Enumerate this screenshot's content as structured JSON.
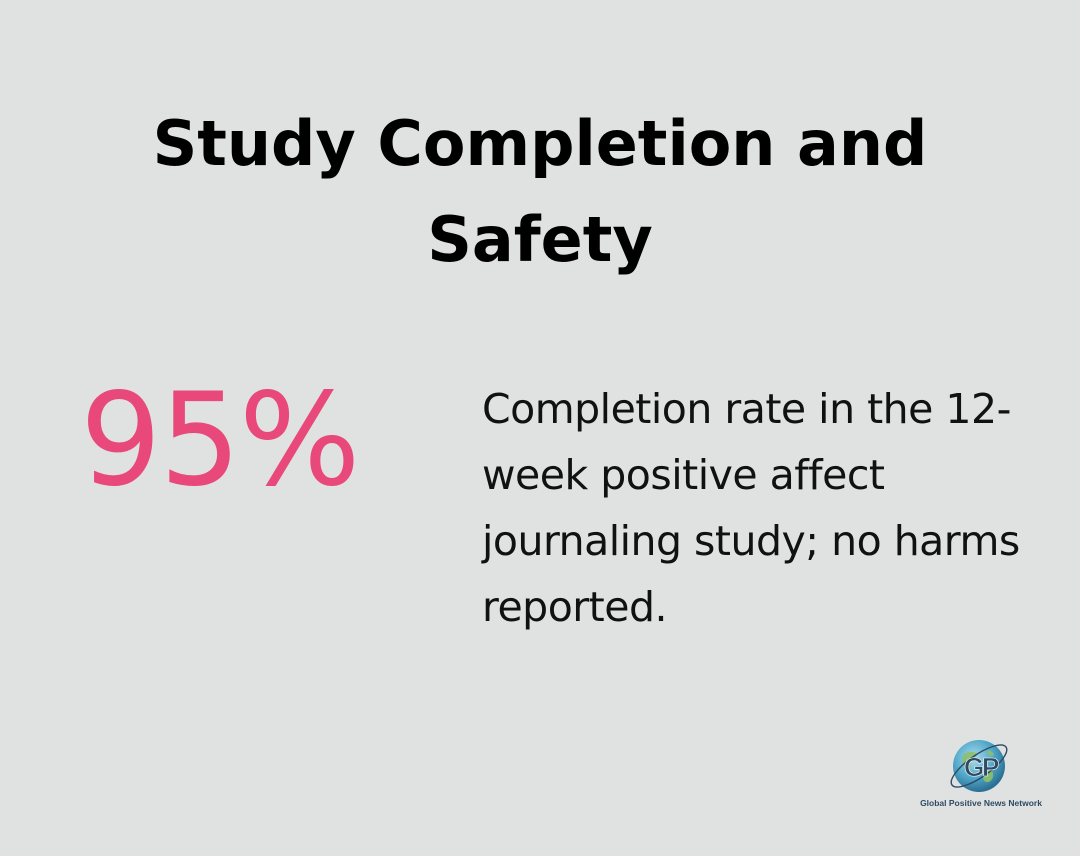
{
  "title": "Study Completion and Safety",
  "stat": {
    "value": "95%",
    "description": "Completion rate in the 12-week positive affect journaling study; no harms reported."
  },
  "logo": {
    "letters": "G P",
    "letter_left": "G",
    "letter_right": "P",
    "name": "Global Positive News Network",
    "icon": "globe-icon"
  },
  "colors": {
    "background": "#e0e2e1",
    "accent": "#e8497a",
    "text": "#000000",
    "logo_text": "#2e4a64"
  }
}
